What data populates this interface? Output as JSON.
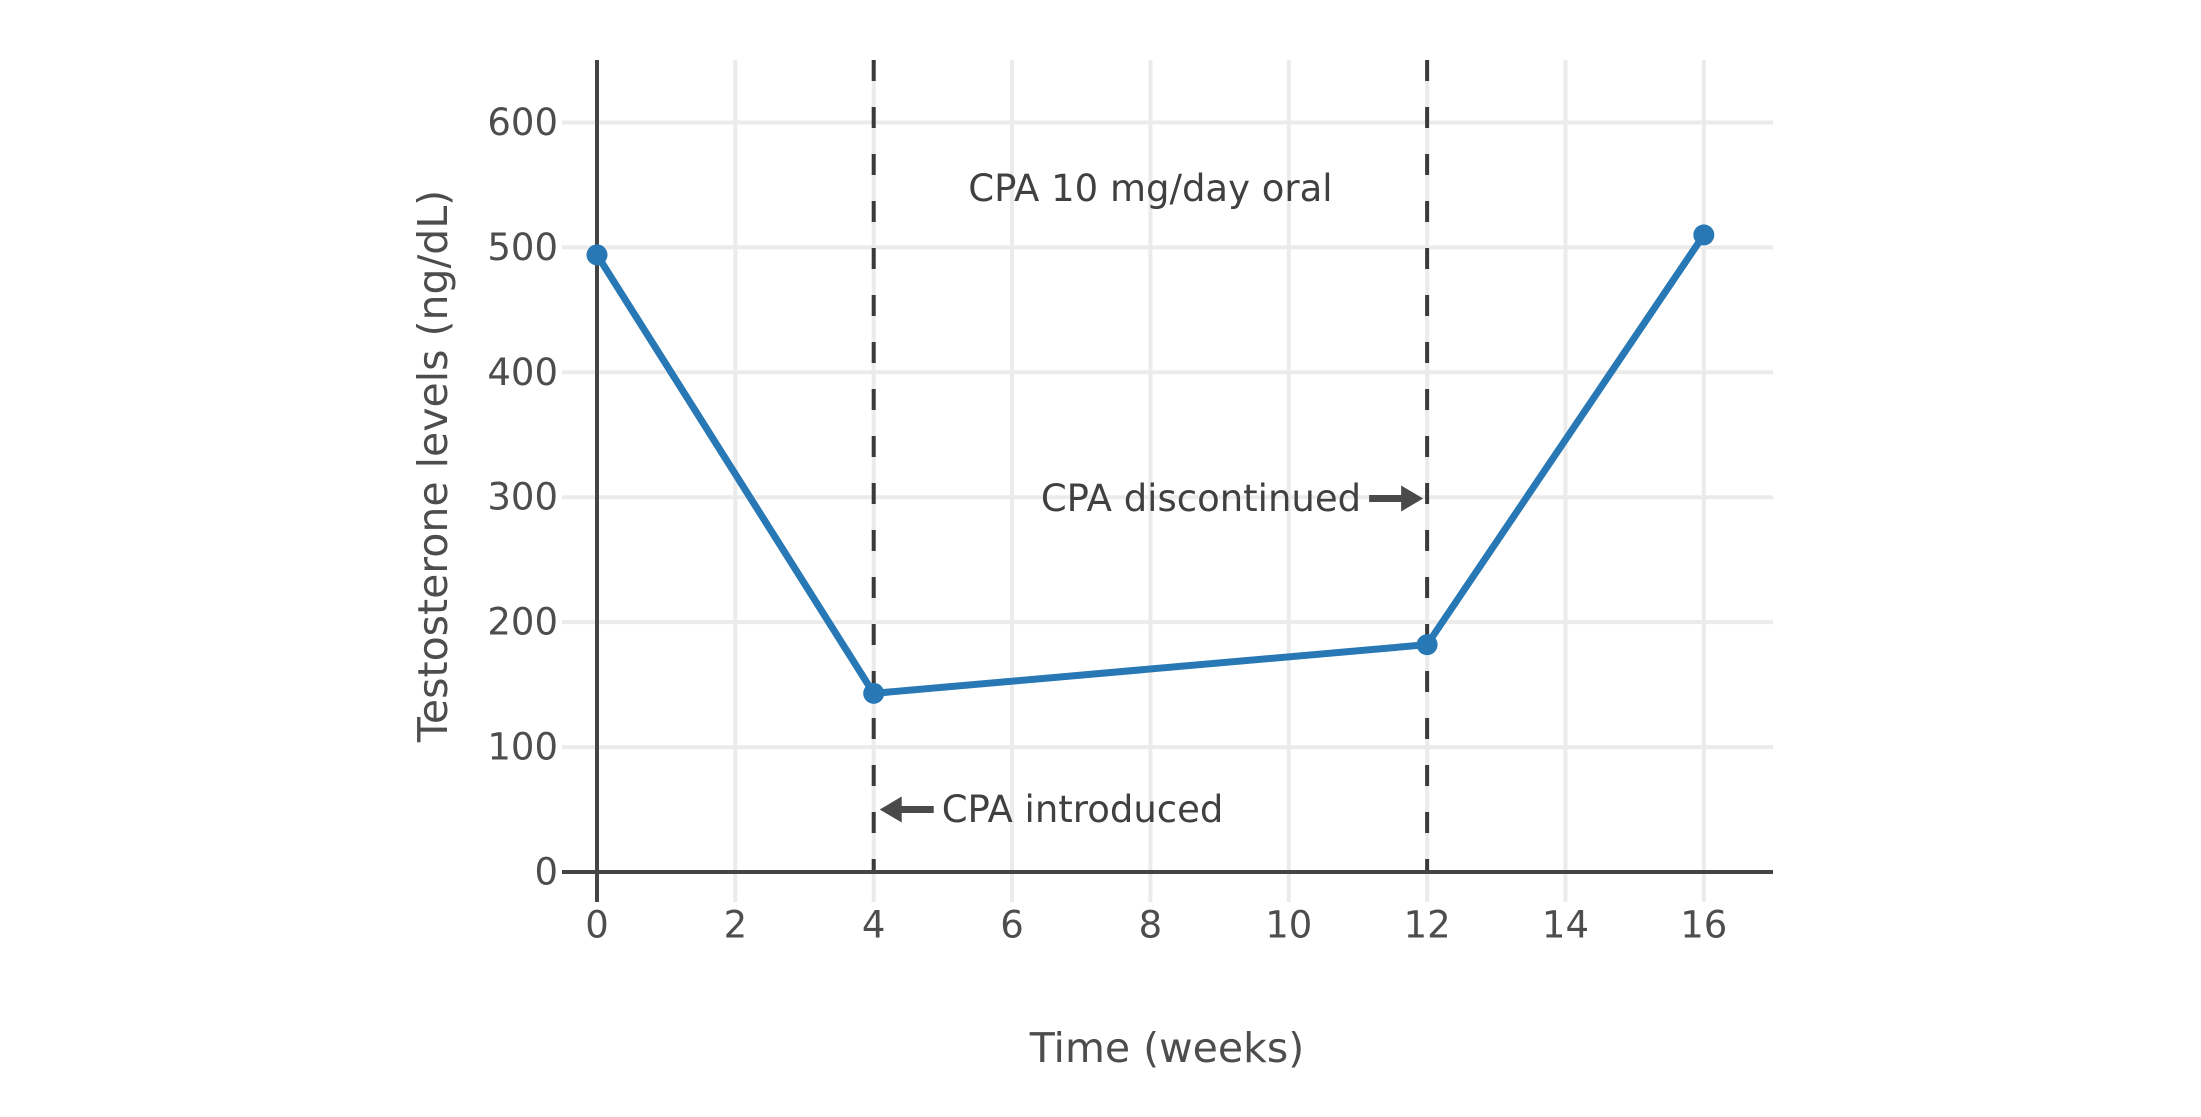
{
  "figure": {
    "background_color": "#ffffff",
    "grid_color": "#ebebeb",
    "spine_color": "#444444",
    "tick_text_color": "#4d4d4d",
    "annotation_color": "#404040",
    "dashed_line_color": "#3a3a3a",
    "arrow_color": "#4a4a4a",
    "series_color": "#2878b5"
  },
  "chart_data": {
    "type": "line",
    "title": "",
    "xlabel": "Time (weeks)",
    "ylabel": "Testosterone levels (ng/dL)",
    "x": [
      0,
      4,
      12,
      16
    ],
    "series": [
      {
        "name": "Testosterone levels",
        "values": [
          494,
          143,
          182,
          510
        ],
        "color": "#2878b5",
        "marker": "circle"
      }
    ],
    "xlim": [
      0,
      17
    ],
    "ylim": [
      0,
      650
    ],
    "x_ticks": [
      0,
      2,
      4,
      6,
      8,
      10,
      12,
      14,
      16
    ],
    "y_ticks": [
      0,
      100,
      200,
      300,
      400,
      500,
      600
    ],
    "grid": true,
    "legend": false,
    "vlines": [
      {
        "x": 4,
        "style": "dashed",
        "color": "#3a3a3a"
      },
      {
        "x": 12,
        "style": "dashed",
        "color": "#3a3a3a"
      }
    ],
    "annotations": [
      {
        "id": "drug-period-label",
        "text": "CPA 10 mg/day oral",
        "x_week": 8,
        "y_value": 547,
        "arrow": null
      },
      {
        "id": "cpa-discontinued-label",
        "text": "CPA discontinued",
        "x_week": 12,
        "y_value": 299,
        "arrow": "right"
      },
      {
        "id": "cpa-introduced-label",
        "text": "CPA introduced",
        "x_week": 4,
        "y_value": 50,
        "arrow": "left"
      }
    ]
  }
}
